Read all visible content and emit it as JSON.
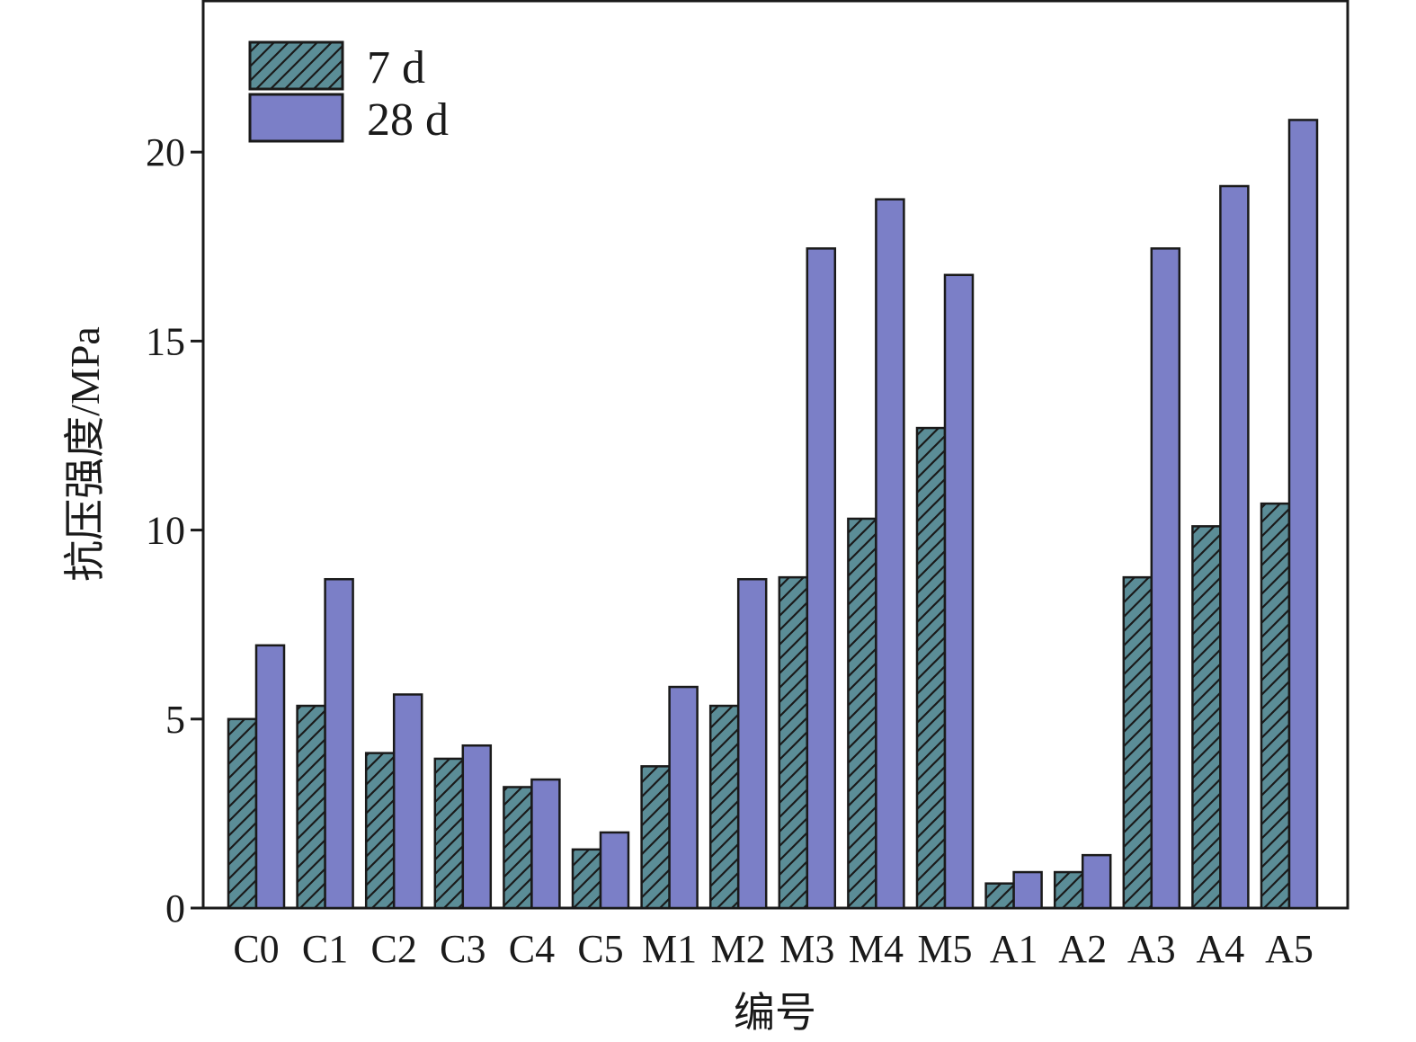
{
  "chart_data": {
    "type": "bar",
    "xlabel": "编号",
    "ylabel": "抗压强度/MPa",
    "ylim": [
      0,
      24
    ],
    "yticks": [
      0,
      5,
      10,
      15,
      20
    ],
    "grid": false,
    "legend_position": "top-left",
    "categories": [
      "C0",
      "C1",
      "C2",
      "C3",
      "C4",
      "C5",
      "M1",
      "M2",
      "M3",
      "M4",
      "M5",
      "A1",
      "A2",
      "A3",
      "A4",
      "A5"
    ],
    "series": [
      {
        "name": "7 d",
        "color": "#5b8d97",
        "pattern": "diagonal-hatch",
        "values": [
          5.0,
          5.35,
          4.1,
          3.95,
          3.2,
          1.55,
          3.75,
          5.35,
          8.75,
          10.3,
          12.7,
          0.65,
          0.95,
          8.75,
          10.1,
          10.7
        ]
      },
      {
        "name": "28 d",
        "color": "#7b7fc7",
        "pattern": "solid",
        "values": [
          6.95,
          8.7,
          5.65,
          4.3,
          3.4,
          2.0,
          5.85,
          8.7,
          17.45,
          18.75,
          16.75,
          0.95,
          1.4,
          17.45,
          19.1,
          20.85
        ]
      }
    ]
  }
}
